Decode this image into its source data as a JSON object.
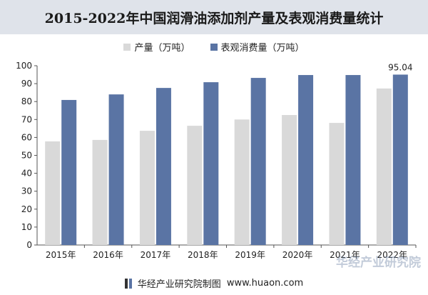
{
  "chart_data": {
    "type": "bar",
    "title": "2015-2022年中国润滑油添加剂产量及表观消费量统计",
    "categories": [
      "2015年",
      "2016年",
      "2017年",
      "2018年",
      "2019年",
      "2020年",
      "2021年",
      "2022年"
    ],
    "series": [
      {
        "name": "产量（万吨）",
        "color": "#d9d9d9",
        "values": [
          57.8,
          58.6,
          63.7,
          66.5,
          70.0,
          72.5,
          68.1,
          87.3
        ]
      },
      {
        "name": "表观消费量（万吨）",
        "color": "#5a74a4",
        "values": [
          80.9,
          84.0,
          87.6,
          90.8,
          93.2,
          94.8,
          94.8,
          95.04
        ]
      }
    ],
    "data_labels": [
      {
        "series": 1,
        "index": 7,
        "text": "95.04"
      }
    ],
    "ylim": [
      0,
      100
    ],
    "yticks": [
      0,
      10,
      20,
      30,
      40,
      50,
      60,
      70,
      80,
      90,
      100
    ],
    "grid": false,
    "legend": "top-center"
  },
  "footer": {
    "source": "华经产业研究院制图",
    "url": "www.huaon.com"
  },
  "watermark": "华经产业研究院"
}
